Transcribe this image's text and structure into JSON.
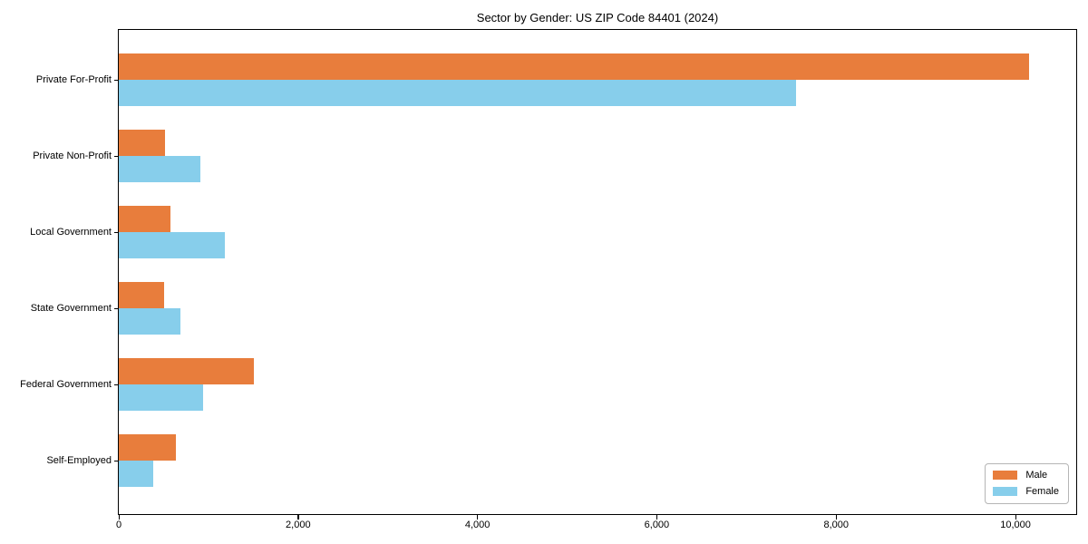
{
  "figure": {
    "title": "Sector by Gender: US ZIP Code 84401 (2024)"
  },
  "chart_data": {
    "type": "bar",
    "orientation": "horizontal",
    "title": "Sector by Gender: US ZIP Code 84401 (2024)",
    "categories": [
      "Private For-Profit",
      "Private Non-Profit",
      "Local Government",
      "State Government",
      "Federal Government",
      "Self-Employed"
    ],
    "series": [
      {
        "name": "Male",
        "color": "#e87d3c",
        "values": [
          10150,
          515,
          580,
          505,
          1505,
          640
        ]
      },
      {
        "name": "Female",
        "color": "#87ceeb",
        "values": [
          7550,
          910,
          1180,
          690,
          940,
          385
        ]
      }
    ],
    "xlabel": "",
    "ylabel": "",
    "xlim": [
      0,
      10667
    ],
    "xticks": [
      0,
      2000,
      4000,
      6000,
      8000,
      10000
    ],
    "xtick_labels": [
      "0",
      "2,000",
      "4,000",
      "6,000",
      "8,000",
      "10,000"
    ],
    "grid": false,
    "legend_position": "lower right"
  },
  "legend": {
    "items": [
      {
        "label": "Male",
        "color": "#e87d3c"
      },
      {
        "label": "Female",
        "color": "#87ceeb"
      }
    ]
  },
  "colors": {
    "male": "#e87d3c",
    "female": "#87ceeb",
    "axis": "#000000",
    "background": "#ffffff",
    "legend_border": "#b5b5b5"
  }
}
